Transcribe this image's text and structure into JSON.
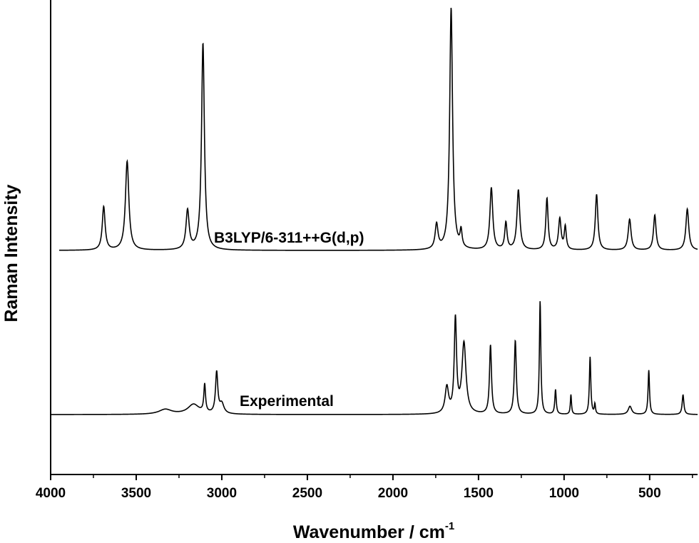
{
  "chart_data": {
    "type": "line",
    "xlabel": "Wavenumber / cm",
    "xlabel_superscript": "-1",
    "ylabel": "Raman Intensity",
    "xlim": [
      4000,
      220
    ],
    "x_reversed": true,
    "y_ticks_shown": false,
    "grid": false,
    "x_ticks": [
      4000,
      3500,
      3000,
      2500,
      2000,
      1500,
      1000,
      500
    ],
    "series": [
      {
        "name": "B3LYP/6-311++G(d,p)",
        "color": "#000000",
        "baseline": 0,
        "x_range": [
          3950,
          220
        ],
        "peaks": [
          {
            "x": 3690,
            "h": 0.21,
            "w": 10
          },
          {
            "x": 3553,
            "h": 0.43,
            "w": 12
          },
          {
            "x": 3200,
            "h": 0.19,
            "w": 11
          },
          {
            "x": 3110,
            "h": 1.0,
            "w": 10
          },
          {
            "x": 1745,
            "h": 0.12,
            "w": 10
          },
          {
            "x": 1660,
            "h": 1.17,
            "w": 10
          },
          {
            "x": 1602,
            "h": 0.08,
            "w": 7
          },
          {
            "x": 1425,
            "h": 0.3,
            "w": 10
          },
          {
            "x": 1340,
            "h": 0.13,
            "w": 8
          },
          {
            "x": 1267,
            "h": 0.29,
            "w": 10
          },
          {
            "x": 1100,
            "h": 0.25,
            "w": 8
          },
          {
            "x": 1025,
            "h": 0.15,
            "w": 9
          },
          {
            "x": 993,
            "h": 0.11,
            "w": 7
          },
          {
            "x": 810,
            "h": 0.27,
            "w": 9
          },
          {
            "x": 617,
            "h": 0.15,
            "w": 10
          },
          {
            "x": 470,
            "h": 0.17,
            "w": 9
          },
          {
            "x": 280,
            "h": 0.2,
            "w": 10
          }
        ]
      },
      {
        "name": "Experimental",
        "color": "#000000",
        "baseline": 0,
        "x_range": [
          4000,
          220
        ],
        "peaks": [
          {
            "x": 3330,
            "h": 0.03,
            "w": 45
          },
          {
            "x": 3165,
            "h": 0.06,
            "w": 40
          },
          {
            "x": 3100,
            "h": 0.17,
            "w": 6
          },
          {
            "x": 3030,
            "h": 0.25,
            "w": 8
          },
          {
            "x": 3000,
            "h": 0.06,
            "w": 15
          },
          {
            "x": 1685,
            "h": 0.16,
            "w": 12
          },
          {
            "x": 1635,
            "h": 0.57,
            "w": 8
          },
          {
            "x": 1585,
            "h": 0.43,
            "w": 14
          },
          {
            "x": 1430,
            "h": 0.42,
            "w": 7
          },
          {
            "x": 1285,
            "h": 0.45,
            "w": 7
          },
          {
            "x": 1140,
            "h": 0.69,
            "w": 5
          },
          {
            "x": 1050,
            "h": 0.15,
            "w": 5
          },
          {
            "x": 960,
            "h": 0.12,
            "w": 4
          },
          {
            "x": 848,
            "h": 0.35,
            "w": 5
          },
          {
            "x": 820,
            "h": 0.06,
            "w": 4
          },
          {
            "x": 615,
            "h": 0.05,
            "w": 12
          },
          {
            "x": 505,
            "h": 0.27,
            "w": 5
          },
          {
            "x": 305,
            "h": 0.12,
            "w": 6
          }
        ]
      }
    ]
  }
}
